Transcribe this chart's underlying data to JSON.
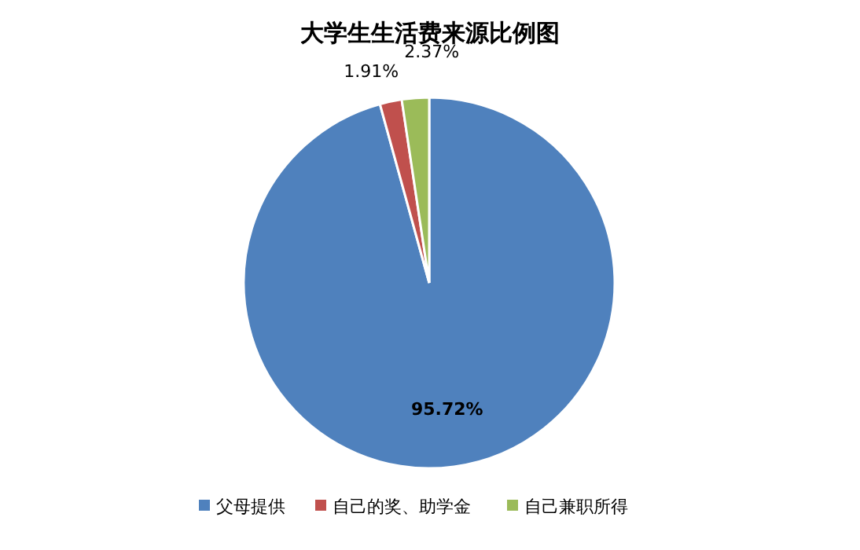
{
  "chart_data": {
    "type": "pie",
    "title": "大学生生活费来源比例图",
    "categories": [
      "父母提供",
      "自己的奖、助学金",
      "自己兼职所得"
    ],
    "values": [
      95.72,
      1.91,
      2.37
    ],
    "colors": [
      "#4f81bd",
      "#c0504d",
      "#9bbb59"
    ],
    "value_labels": [
      "95.72%",
      "1.91%",
      "2.37%"
    ],
    "legend": "bottom"
  }
}
